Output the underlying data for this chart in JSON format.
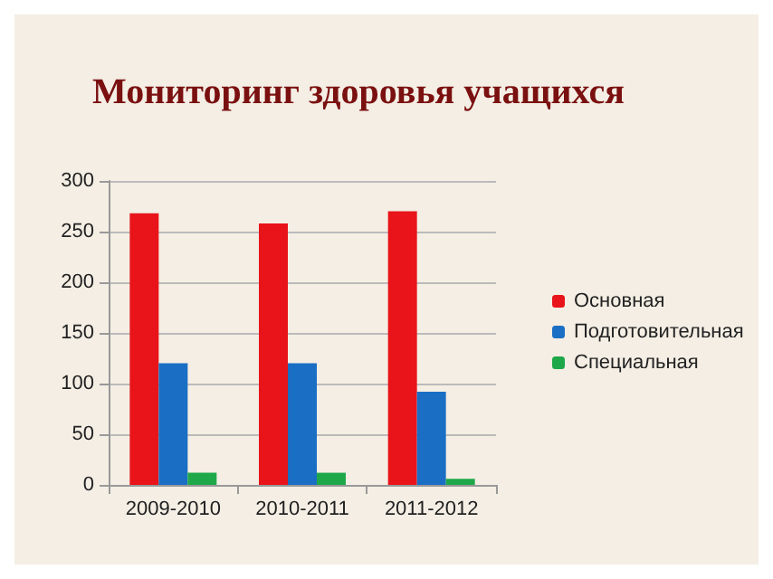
{
  "chart_data": {
    "type": "bar",
    "title": "Мониторинг здоровья учащихся",
    "categories": [
      "2009-2010",
      "2010-2011",
      "2011-2012"
    ],
    "series": [
      {
        "name": "Основная",
        "color": "#e8141a",
        "values": [
          268,
          258,
          270
        ]
      },
      {
        "name": "Подготовительная",
        "color": "#1a6fc4",
        "values": [
          120,
          120,
          92
        ]
      },
      {
        "name": "Специальная",
        "color": "#1fa84a",
        "values": [
          12,
          12,
          6
        ]
      }
    ],
    "ylim": [
      0,
      300
    ],
    "yticks": [
      0,
      50,
      100,
      150,
      200,
      250,
      300
    ],
    "grid": "y",
    "legend": "right"
  }
}
